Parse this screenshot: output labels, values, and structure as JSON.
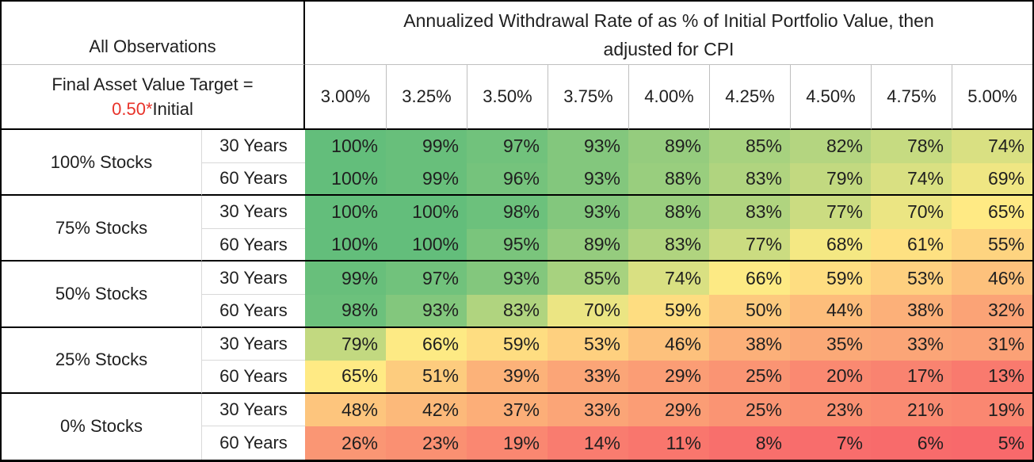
{
  "chart_data": {
    "type": "heatmap",
    "title": "Annualized Withdrawal Rate of as % of Initial Portfolio Value, then adjusted for CPI",
    "title_lines": [
      "Annualized Withdrawal Rate of as % of Initial Portfolio Value, then",
      "adjusted for CPI"
    ],
    "corner_label": "All Observations",
    "target_label": "Final Asset Value Target =",
    "target_value_red": "0.50*",
    "target_value_rest": "Initial",
    "columns": [
      "3.00%",
      "3.25%",
      "3.50%",
      "3.75%",
      "4.00%",
      "4.25%",
      "4.50%",
      "4.75%",
      "5.00%"
    ],
    "value_unit": "%",
    "row_groups": [
      {
        "label": "100% Stocks",
        "rows": [
          {
            "period": "30 Years",
            "values": [
              100,
              99,
              97,
              93,
              89,
              85,
              82,
              78,
              74
            ]
          },
          {
            "period": "60 Years",
            "values": [
              100,
              99,
              96,
              93,
              88,
              83,
              79,
              74,
              69
            ]
          }
        ]
      },
      {
        "label": "75% Stocks",
        "rows": [
          {
            "period": "30 Years",
            "values": [
              100,
              100,
              98,
              93,
              88,
              83,
              77,
              70,
              65
            ]
          },
          {
            "period": "60 Years",
            "values": [
              100,
              100,
              95,
              89,
              83,
              77,
              68,
              61,
              55
            ]
          }
        ]
      },
      {
        "label": "50% Stocks",
        "rows": [
          {
            "period": "30 Years",
            "values": [
              99,
              97,
              93,
              85,
              74,
              66,
              59,
              53,
              46
            ]
          },
          {
            "period": "60 Years",
            "values": [
              98,
              93,
              83,
              70,
              59,
              50,
              44,
              38,
              32
            ]
          }
        ]
      },
      {
        "label": "25% Stocks",
        "rows": [
          {
            "period": "30 Years",
            "values": [
              79,
              66,
              59,
              53,
              46,
              38,
              35,
              33,
              31
            ]
          },
          {
            "period": "60 Years",
            "values": [
              65,
              51,
              39,
              33,
              29,
              25,
              20,
              17,
              13
            ]
          }
        ]
      },
      {
        "label": "0% Stocks",
        "rows": [
          {
            "period": "30 Years",
            "values": [
              48,
              42,
              37,
              33,
              29,
              25,
              23,
              21,
              19
            ]
          },
          {
            "period": "60 Years",
            "values": [
              26,
              23,
              19,
              14,
              11,
              8,
              7,
              6,
              5
            ]
          }
        ]
      }
    ],
    "color_scale": {
      "type": "3-color-scale",
      "min_value": 5,
      "mid_value": 65.5,
      "max_value": 100,
      "min_color": "#F8696B",
      "mid_color": "#FFEB84",
      "max_color": "#63BE7B"
    },
    "legend_position": "none",
    "grid": "off"
  },
  "colors": {
    "text": "#1F1F1F",
    "red_text": "#E8332A",
    "grid_dark": "#000000",
    "grid_light": "#BFBFBF",
    "grid_lighter": "#D9D9D9",
    "background": "#FFFFFF"
  }
}
